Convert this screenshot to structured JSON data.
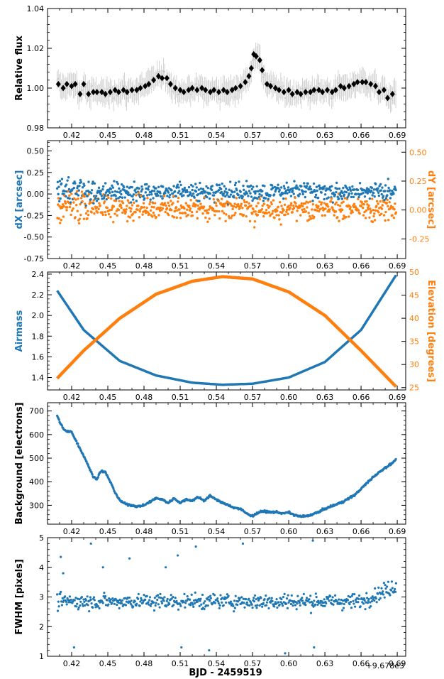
{
  "figure": {
    "xlabel": "BJD - 2459519",
    "offset_text": "+9.678e3"
  },
  "colors": {
    "blue": "#1f77b4",
    "orange": "#ff7f0e",
    "grey": "#c8c8c8",
    "black": "#000000"
  },
  "x_axis": {
    "range": [
      0.4,
      0.697
    ],
    "ticks": [
      0.42,
      0.45,
      0.48,
      0.51,
      0.54,
      0.57,
      0.6,
      0.63,
      0.66,
      0.69
    ],
    "tick_labels": [
      "0.42",
      "0.45",
      "0.48",
      "0.51",
      "0.54",
      "0.57",
      "0.60",
      "0.63",
      "0.66",
      "0.69"
    ]
  },
  "chart_data": [
    {
      "type": "scatter",
      "panel": "flux",
      "ylabel": "Relative flux",
      "ylim": [
        0.98,
        1.04
      ],
      "yticks": [
        0.98,
        1.0,
        1.02,
        1.04
      ],
      "ytick_labels": [
        "0.98",
        "1.00",
        "1.02",
        "1.04"
      ],
      "series": [
        {
          "role": "binned",
          "color": "#000000",
          "x": [
            0.409,
            0.413,
            0.416,
            0.42,
            0.423,
            0.427,
            0.43,
            0.434,
            0.438,
            0.441,
            0.445,
            0.448,
            0.452,
            0.456,
            0.459,
            0.463,
            0.466,
            0.47,
            0.474,
            0.477,
            0.481,
            0.484,
            0.488,
            0.492,
            0.495,
            0.499,
            0.502,
            0.506,
            0.51,
            0.513,
            0.517,
            0.52,
            0.524,
            0.528,
            0.531,
            0.535,
            0.538,
            0.542,
            0.546,
            0.549,
            0.553,
            0.556,
            0.56,
            0.564,
            0.567,
            0.569,
            0.571,
            0.573,
            0.576,
            0.578,
            0.582,
            0.585,
            0.589,
            0.592,
            0.596,
            0.6,
            0.603,
            0.607,
            0.61,
            0.614,
            0.618,
            0.621,
            0.625,
            0.628,
            0.632,
            0.636,
            0.639,
            0.643,
            0.646,
            0.65,
            0.654,
            0.657,
            0.661,
            0.664,
            0.668,
            0.672,
            0.675,
            0.679,
            0.682,
            0.686
          ],
          "y": [
            1.002,
            1.0,
            1.002,
            1.001,
            1.002,
            0.997,
            1.002,
            0.997,
            0.998,
            0.998,
            0.998,
            0.997,
            0.998,
            0.999,
            0.998,
            0.999,
            0.998,
            0.999,
            0.999,
            1.0,
            1.001,
            1.002,
            1.004,
            1.006,
            1.005,
            1.005,
            1.002,
            1.0,
            0.999,
            0.998,
            0.999,
            1.0,
            0.999,
            1.0,
            0.999,
            0.998,
            0.999,
            0.998,
            0.999,
            0.998,
            0.999,
            1.0,
            1.001,
            1.003,
            1.006,
            1.01,
            1.017,
            1.016,
            1.014,
            1.009,
            1.002,
            1.001,
            1.0,
            0.999,
            0.998,
            0.999,
            0.997,
            0.998,
            0.997,
            0.998,
            0.998,
            0.999,
            0.999,
            0.998,
            0.999,
            0.998,
            0.999,
            1.001,
            1.0,
            1.001,
            1.002,
            1.003,
            1.003,
            1.003,
            1.002,
            1.001,
            0.998,
            0.999,
            0.995,
            0.997
          ]
        }
      ]
    },
    {
      "type": "scatter",
      "panel": "centroid",
      "ylabel": "dX [arcsec]",
      "ylabel_right": "dY [arcsec]",
      "ylim": [
        -0.75,
        0.62
      ],
      "ylim_right": [
        -0.42,
        0.6
      ],
      "yticks": [
        -0.75,
        -0.5,
        -0.25,
        0.0,
        0.25,
        0.5
      ],
      "ytick_labels": [
        "-0.75",
        "-0.50",
        "-0.25",
        "0.00",
        "0.25",
        "0.50"
      ],
      "yticks_right": [
        -0.25,
        0.0,
        0.25,
        0.5
      ],
      "ytick_labels_right": [
        "-0.25",
        "0.00",
        "0.25",
        "0.50"
      ],
      "series": [
        {
          "name": "dX",
          "color": "#1f77b4",
          "scatter_center": 0.03,
          "scatter_sigma": 0.1
        },
        {
          "name": "dY",
          "color": "#ff7f0e",
          "scatter_center": 0.01,
          "scatter_sigma": 0.1
        }
      ]
    },
    {
      "type": "line",
      "panel": "airmass",
      "ylabel": "Airmass",
      "ylabel_right": "Elevation [degrees]",
      "ylim": [
        1.28,
        2.42
      ],
      "ylim_right": [
        24.5,
        50
      ],
      "yticks": [
        1.4,
        1.6,
        1.8,
        2.0,
        2.2,
        2.4
      ],
      "ytick_labels": [
        "1.4",
        "1.6",
        "1.8",
        "2.0",
        "2.2",
        "2.4"
      ],
      "yticks_right": [
        25,
        30,
        35,
        40,
        45,
        50
      ],
      "ytick_labels_right": [
        "25",
        "30",
        "35",
        "40",
        "45",
        "50"
      ],
      "series": [
        {
          "name": "Airmass",
          "color": "#1f77b4",
          "x": [
            0.408,
            0.43,
            0.46,
            0.49,
            0.52,
            0.545,
            0.57,
            0.6,
            0.63,
            0.66,
            0.689
          ],
          "y": [
            2.24,
            1.86,
            1.56,
            1.42,
            1.35,
            1.33,
            1.34,
            1.4,
            1.55,
            1.86,
            2.39
          ]
        },
        {
          "name": "Elevation",
          "color": "#ff7f0e",
          "x": [
            0.408,
            0.43,
            0.46,
            0.49,
            0.52,
            0.545,
            0.57,
            0.6,
            0.63,
            0.66,
            0.689
          ],
          "y": [
            27.0,
            33.0,
            40.0,
            45.2,
            48.0,
            49.0,
            48.5,
            45.7,
            40.6,
            33.0,
            25.2
          ]
        }
      ]
    },
    {
      "type": "scatter",
      "panel": "background",
      "ylabel": "Background [electrons]",
      "ylim": [
        220,
        735
      ],
      "yticks": [
        300,
        400,
        500,
        600,
        700
      ],
      "ytick_labels": [
        "300",
        "400",
        "500",
        "600",
        "700"
      ],
      "series": [
        {
          "name": "Background",
          "color": "#1f77b4",
          "x": [
            0.408,
            0.41,
            0.413,
            0.416,
            0.42,
            0.423,
            0.427,
            0.431,
            0.435,
            0.438,
            0.441,
            0.444,
            0.448,
            0.452,
            0.456,
            0.46,
            0.465,
            0.47,
            0.475,
            0.48,
            0.485,
            0.49,
            0.495,
            0.5,
            0.505,
            0.51,
            0.515,
            0.52,
            0.525,
            0.53,
            0.535,
            0.54,
            0.545,
            0.55,
            0.555,
            0.56,
            0.565,
            0.57,
            0.575,
            0.58,
            0.585,
            0.59,
            0.595,
            0.6,
            0.605,
            0.61,
            0.615,
            0.62,
            0.625,
            0.63,
            0.635,
            0.64,
            0.645,
            0.65,
            0.655,
            0.66,
            0.665,
            0.67,
            0.675,
            0.68,
            0.685,
            0.689
          ],
          "y": [
            680,
            655,
            625,
            612,
            612,
            580,
            540,
            500,
            455,
            420,
            412,
            445,
            440,
            400,
            355,
            320,
            305,
            300,
            295,
            300,
            315,
            330,
            325,
            310,
            330,
            310,
            325,
            320,
            335,
            320,
            340,
            325,
            310,
            300,
            290,
            285,
            265,
            255,
            270,
            275,
            270,
            272,
            265,
            270,
            258,
            252,
            255,
            262,
            272,
            285,
            295,
            305,
            315,
            330,
            345,
            370,
            395,
            420,
            440,
            460,
            475,
            495
          ]
        }
      ]
    },
    {
      "type": "scatter",
      "panel": "fwhm",
      "ylabel": "FWHM [pixels]",
      "ylim": [
        1,
        5
      ],
      "yticks": [
        1,
        2,
        3,
        4,
        5
      ],
      "ytick_labels": [
        "1",
        "2",
        "3",
        "4",
        "5"
      ],
      "series": [
        {
          "name": "FWHM",
          "color": "#1f77b4",
          "scatter_center": 2.85,
          "scatter_sigma": 0.25,
          "outliers_x": [
            0.411,
            0.413,
            0.422,
            0.436,
            0.446,
            0.468,
            0.498,
            0.508,
            0.511,
            0.523,
            0.534,
            0.562,
            0.597,
            0.62,
            0.621
          ],
          "outliers_y": [
            4.35,
            3.8,
            1.3,
            4.8,
            4.0,
            4.3,
            4.0,
            4.4,
            1.3,
            4.7,
            1.2,
            4.8,
            1.1,
            4.9,
            1.3
          ]
        }
      ]
    }
  ]
}
